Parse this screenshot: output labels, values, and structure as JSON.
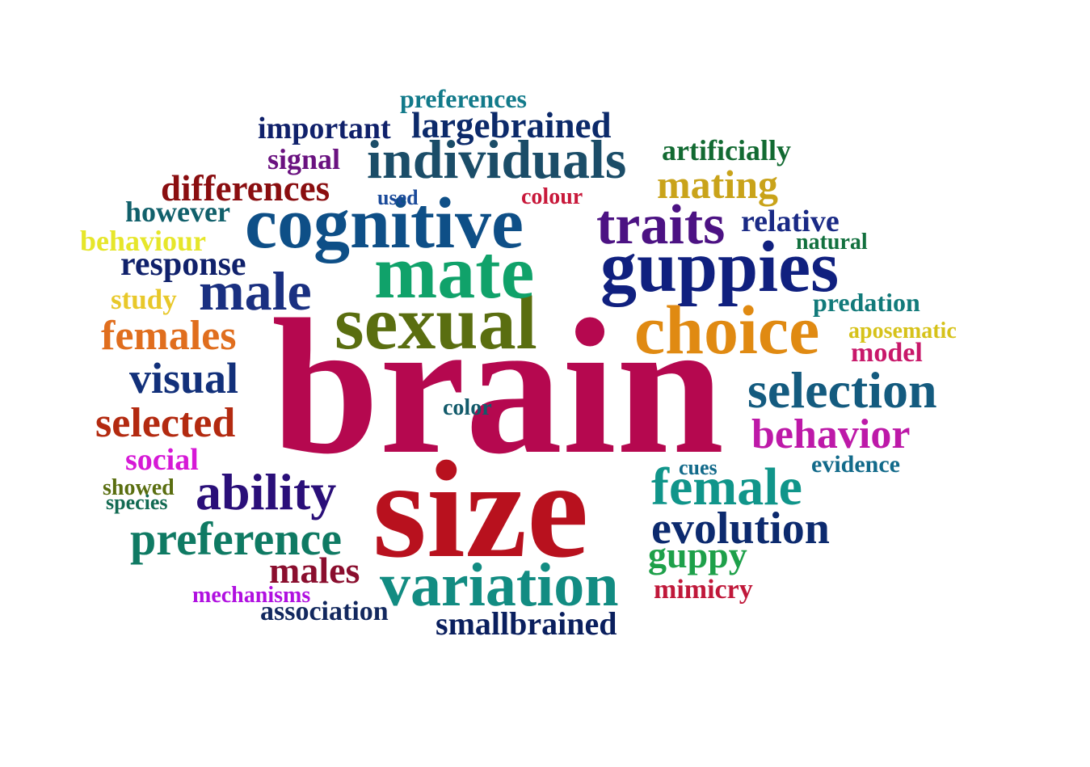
{
  "words": [
    {
      "text": "brain",
      "color": "#b5084f"
    },
    {
      "text": "size",
      "color": "#b8111e"
    },
    {
      "text": "sexual",
      "color": "#5a6e10"
    },
    {
      "text": "mate",
      "color": "#10a26a"
    },
    {
      "text": "cognitive",
      "color": "#0e4f87"
    },
    {
      "text": "guppies",
      "color": "#10207f"
    },
    {
      "text": "choice",
      "color": "#e08a12"
    },
    {
      "text": "traits",
      "color": "#4c1283"
    },
    {
      "text": "individuals",
      "color": "#1b4d68"
    },
    {
      "text": "male",
      "color": "#1a3081"
    },
    {
      "text": "selection",
      "color": "#145b7f"
    },
    {
      "text": "variation",
      "color": "#128c82"
    },
    {
      "text": "female",
      "color": "#10958a"
    },
    {
      "text": "ability",
      "color": "#2a0f79"
    },
    {
      "text": "evolution",
      "color": "#0c2a6e"
    },
    {
      "text": "preference",
      "color": "#0f7a63"
    },
    {
      "text": "selected",
      "color": "#b32a10"
    },
    {
      "text": "behavior",
      "color": "#bd19a8"
    },
    {
      "text": "visual",
      "color": "#12307a"
    },
    {
      "text": "females",
      "color": "#e06e1e"
    },
    {
      "text": "differences",
      "color": "#8a0e10"
    },
    {
      "text": "largebrained",
      "color": "#0c2a6a"
    },
    {
      "text": "mating",
      "color": "#c9a31a"
    },
    {
      "text": "guppy",
      "color": "#1ea04a"
    },
    {
      "text": "males",
      "color": "#8a0e2e"
    },
    {
      "text": "response",
      "color": "#10216b"
    },
    {
      "text": "important",
      "color": "#10216b"
    },
    {
      "text": "smallbrained",
      "color": "#0a1f5e"
    },
    {
      "text": "artificially",
      "color": "#126a32"
    },
    {
      "text": "relative",
      "color": "#1a2a85"
    },
    {
      "text": "however",
      "color": "#11606b"
    },
    {
      "text": "behaviour",
      "color": "#e6e62a"
    },
    {
      "text": "signal",
      "color": "#6a1280"
    },
    {
      "text": "social",
      "color": "#d619d6"
    },
    {
      "text": "association",
      "color": "#12285e"
    },
    {
      "text": "mimicry",
      "color": "#c0183a"
    },
    {
      "text": "preferences",
      "color": "#127a8a"
    },
    {
      "text": "study",
      "color": "#e8c82a"
    },
    {
      "text": "model",
      "color": "#c8186a"
    },
    {
      "text": "predation",
      "color": "#127a7a"
    },
    {
      "text": "evidence",
      "color": "#126a8a"
    },
    {
      "text": "aposematic",
      "color": "#d6c21a"
    },
    {
      "text": "colour",
      "color": "#c8183a"
    },
    {
      "text": "natural",
      "color": "#12703e"
    },
    {
      "text": "color",
      "color": "#125a6a"
    },
    {
      "text": "mechanisms",
      "color": "#b010e0"
    },
    {
      "text": "showed",
      "color": "#5a6e10"
    },
    {
      "text": "species",
      "color": "#126a52"
    },
    {
      "text": "used",
      "color": "#1a4a9a"
    },
    {
      "text": "cues",
      "color": "#126a8a"
    }
  ]
}
